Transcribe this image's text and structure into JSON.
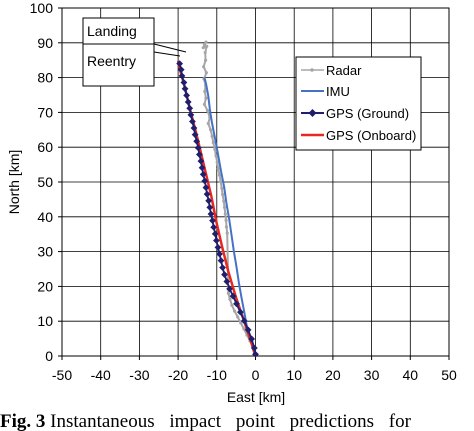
{
  "chart_data": {
    "type": "line",
    "title": "",
    "xlabel": "East [km]",
    "ylabel": "North [km]",
    "xlim": [
      -50,
      50
    ],
    "ylim": [
      0,
      100
    ],
    "xticks": [
      "-50",
      "-40",
      "-30",
      "-20",
      "-10",
      "0",
      "10",
      "20",
      "30",
      "40",
      "50"
    ],
    "yticks": [
      "0",
      "10",
      "20",
      "30",
      "40",
      "50",
      "60",
      "70",
      "80",
      "90",
      "100"
    ],
    "grid": true,
    "legend_position": "right",
    "series": [
      {
        "name": "Radar",
        "color": "#a6a6a6",
        "marker": "small-dot",
        "x": [
          -13.2,
          -12.8,
          -13.5,
          -12.6,
          -13.0,
          -12.9,
          -13.4,
          -12.7,
          -13.3,
          -12.9,
          -13.1,
          -12.8,
          -13.2,
          -12.4,
          -11.8,
          -12.2,
          -11.6,
          -11.2,
          -10.9,
          -10.5,
          -10.2,
          -9.9,
          -9.6,
          -9.3,
          -9.0,
          -8.7,
          -8.5,
          -8.2,
          -8.0,
          -7.8,
          -7.6,
          -7.5,
          -7.3,
          -7.0,
          -6.6,
          -6.1,
          -5.4,
          -4.6,
          -3.8,
          -3.0,
          -2.2,
          -1.4,
          -0.6
        ],
        "y": [
          89.5,
          90.2,
          88.6,
          89.0,
          87.2,
          85.0,
          83.1,
          81.4,
          79.6,
          77.8,
          76.0,
          74.1,
          72.3,
          70.5,
          68.6,
          66.8,
          65.0,
          63.1,
          61.3,
          59.4,
          57.5,
          55.7,
          53.8,
          52.0,
          50.1,
          48.2,
          46.4,
          44.5,
          42.7,
          40.8,
          39.0,
          37.1,
          35.3,
          18.0,
          16.3,
          14.6,
          12.9,
          11.2,
          9.5,
          7.8,
          6.0,
          4.3,
          2.6
        ]
      },
      {
        "name": "IMU",
        "color": "#4472c4",
        "marker": "none",
        "x": [
          -13.2,
          -12.8,
          -12.2,
          -11.8,
          -11.3,
          -10.6,
          -9.7,
          -8.9,
          -8.1,
          -7.5,
          -6.8,
          -6.2,
          -5.6,
          -4.9,
          -4.3,
          -3.6,
          -2.9,
          -2.3,
          -1.5,
          -0.8,
          -0.2,
          0.0
        ],
        "y": [
          80.0,
          78.3,
          74.7,
          71.0,
          67.3,
          63.3,
          58.0,
          53.0,
          48.5,
          43.8,
          39.3,
          34.8,
          30.2,
          25.6,
          21.0,
          16.6,
          12.6,
          8.9,
          5.4,
          2.5,
          0.5,
          0.0
        ]
      },
      {
        "name": "GPS (Ground)",
        "color": "#1f1f6e",
        "marker": "diamond",
        "x": [
          -19.6,
          -19.2,
          -19.0,
          -18.5,
          -18.2,
          -17.8,
          -17.4,
          -17.0,
          -16.7,
          -16.3,
          -15.9,
          -15.6,
          -15.2,
          -14.8,
          -14.5,
          -14.1,
          -13.8,
          -13.5,
          -13.1,
          -12.8,
          -12.5,
          -12.1,
          -11.8,
          -11.5,
          -11.1,
          -10.8,
          -10.4,
          -10.1,
          -9.7,
          -9.3,
          -8.9,
          -8.5,
          -8.0,
          -7.4,
          -6.7,
          -5.8,
          -4.9,
          -3.9,
          -2.9,
          -1.9,
          -1.0,
          -0.3,
          0.0
        ],
        "y": [
          84.0,
          82.3,
          80.5,
          78.6,
          76.8,
          74.9,
          73.0,
          71.2,
          69.3,
          67.4,
          65.5,
          63.6,
          61.7,
          59.8,
          57.9,
          56.0,
          54.1,
          52.2,
          50.3,
          48.4,
          46.5,
          44.6,
          42.7,
          40.8,
          38.9,
          37.0,
          35.1,
          33.2,
          31.2,
          29.3,
          27.4,
          25.4,
          23.4,
          21.4,
          19.3,
          17.2,
          15.0,
          12.6,
          10.1,
          7.5,
          4.9,
          2.3,
          0.5
        ]
      },
      {
        "name": "GPS (Onboard)",
        "color": "#e8281e",
        "marker": "none",
        "x": [
          -20.0,
          -19.6,
          -19.0,
          -18.2,
          -17.0,
          -15.6,
          -14.2,
          -12.8,
          -11.4,
          -10.1,
          -8.6,
          -7.0,
          -5.1,
          -3.0,
          -0.9,
          0.0
        ],
        "y": [
          84.8,
          82.6,
          80.3,
          76.8,
          71.2,
          65.3,
          58.9,
          52.3,
          45.8,
          38.5,
          31.3,
          24.2,
          17.0,
          10.2,
          3.2,
          0.0
        ]
      }
    ],
    "annotations": [
      "Landing",
      "Reentry"
    ]
  },
  "caption": {
    "label": "Fig. 3",
    "text": "Instantaneous impact point predictions for"
  }
}
